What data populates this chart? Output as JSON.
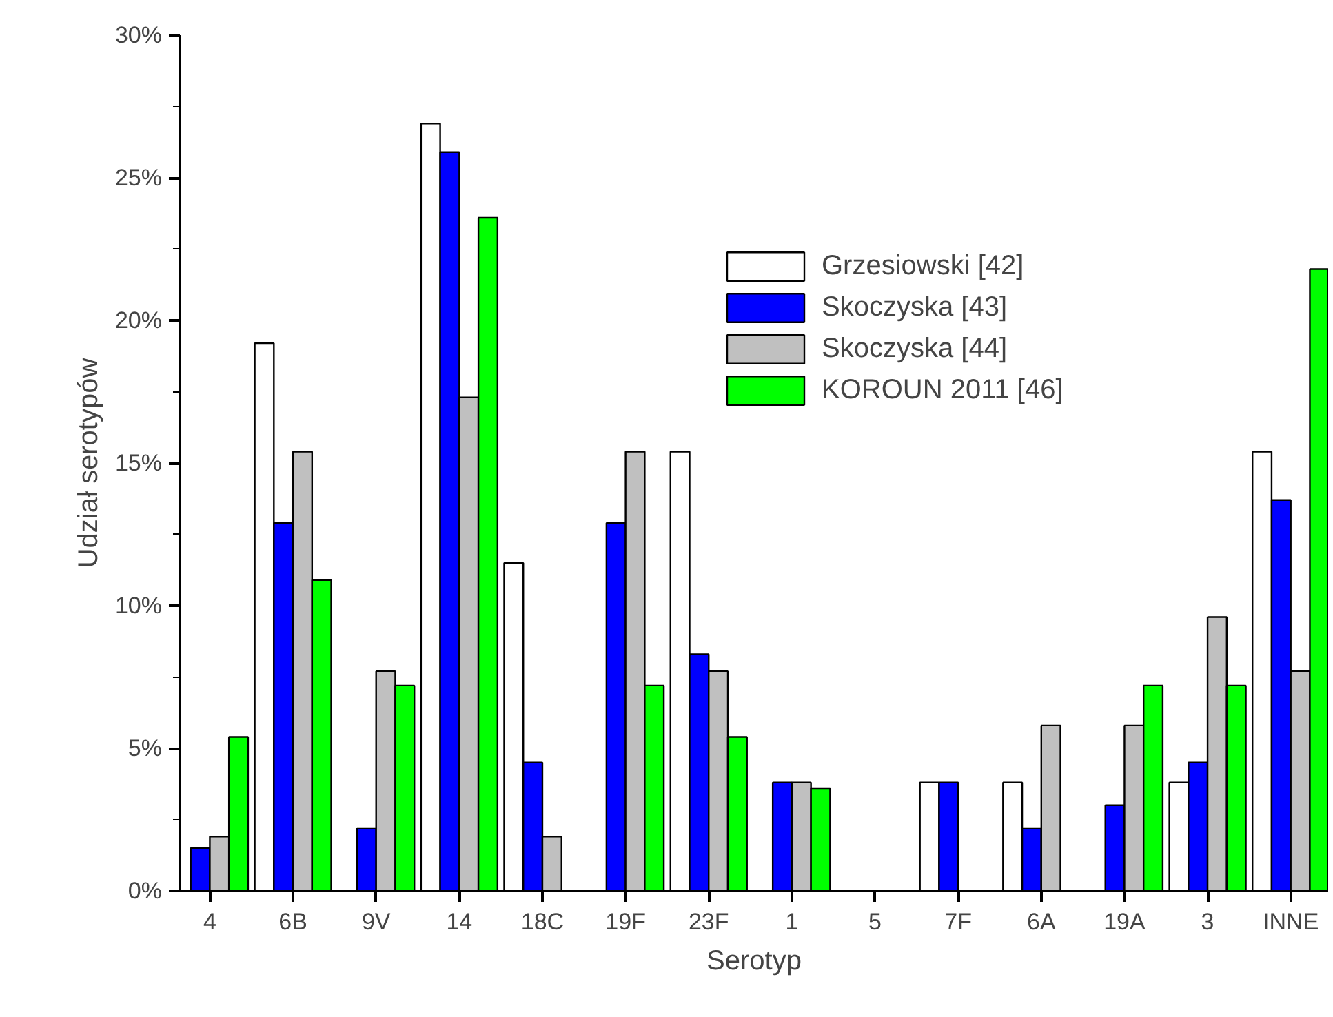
{
  "chart_data": {
    "type": "bar",
    "xlabel": "Serotyp",
    "ylabel": "Udział serotypów",
    "categories": [
      "4",
      "6B",
      "9V",
      "14",
      "18C",
      "19F",
      "23F",
      "1",
      "5",
      "7F",
      "6A",
      "19A",
      "3",
      "INNE"
    ],
    "series": [
      {
        "name": "Grzesiowski [42]",
        "color": "#ffffff",
        "values": [
          null,
          19.2,
          null,
          26.9,
          11.5,
          null,
          15.4,
          null,
          null,
          3.8,
          3.8,
          null,
          3.8,
          15.4
        ]
      },
      {
        "name": "Skoczyska [43]",
        "color": "#0000ff",
        "values": [
          1.5,
          12.9,
          2.2,
          25.9,
          4.5,
          12.9,
          8.3,
          3.8,
          null,
          3.8,
          2.2,
          3.0,
          4.5,
          13.7
        ]
      },
      {
        "name": "Skoczyska [44]",
        "color": "#c0c0c0",
        "values": [
          1.9,
          15.4,
          7.7,
          17.3,
          1.9,
          15.4,
          7.7,
          3.8,
          null,
          null,
          5.8,
          5.8,
          9.6,
          7.7
        ]
      },
      {
        "name": "KOROUN 2011 [46]",
        "color": "#00ff00",
        "values": [
          5.4,
          10.9,
          7.2,
          23.6,
          null,
          7.2,
          5.4,
          3.6,
          null,
          null,
          null,
          7.2,
          7.2,
          21.8
        ]
      }
    ],
    "ylim": [
      0,
      30
    ],
    "yticks": [
      {
        "value": 0,
        "label": "0%"
      },
      {
        "value": 2.5,
        "label": null
      },
      {
        "value": 5,
        "label": "5%"
      },
      {
        "value": 7.5,
        "label": null
      },
      {
        "value": 10,
        "label": "10%"
      },
      {
        "value": 12.5,
        "label": null
      },
      {
        "value": 15,
        "label": "15%"
      },
      {
        "value": 17.5,
        "label": null
      },
      {
        "value": 20,
        "label": "20%"
      },
      {
        "value": 22.5,
        "label": null
      },
      {
        "value": 25,
        "label": "25%"
      },
      {
        "value": 27.5,
        "label": null
      },
      {
        "value": 30,
        "label": "30%"
      }
    ],
    "grid": false,
    "legend": "top right"
  }
}
